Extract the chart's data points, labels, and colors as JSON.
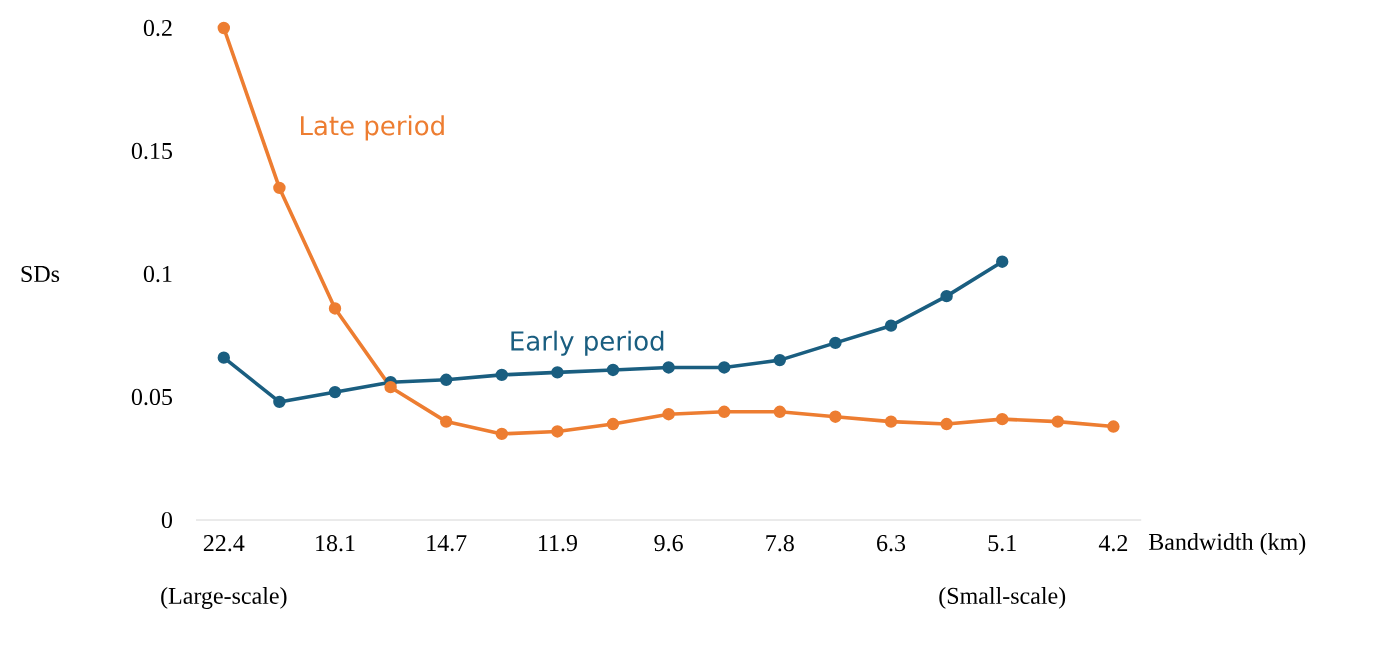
{
  "chart_data": {
    "type": "line",
    "xlabel": "Bandwidth (km)",
    "ylabel": "SDs",
    "categories": [
      "22.4",
      null,
      "18.1",
      null,
      "14.7",
      null,
      "11.9",
      null,
      "9.6",
      null,
      "7.8",
      null,
      "6.3",
      null,
      "5.1",
      null,
      "4.2"
    ],
    "series": [
      {
        "name": "Early period",
        "color": "#1a5e80",
        "values": [
          0.066,
          0.048,
          0.052,
          0.056,
          0.057,
          0.059,
          0.06,
          0.061,
          0.062,
          0.062,
          0.065,
          0.072,
          0.079,
          0.091,
          0.105,
          null,
          null
        ]
      },
      {
        "name": "Late period",
        "color": "#ed7d31",
        "values": [
          0.2,
          0.135,
          0.086,
          0.054,
          0.04,
          0.035,
          0.036,
          0.039,
          0.043,
          0.044,
          0.044,
          0.042,
          0.04,
          0.039,
          0.041,
          0.04,
          0.038
        ]
      }
    ],
    "ylim": [
      0,
      0.2
    ],
    "yticks": [
      0,
      0.05,
      0.1,
      0.15,
      0.2
    ],
    "annotations": [
      "(Large-scale)",
      "(Small-scale)"
    ],
    "grid": false,
    "marker": "circle",
    "line_style": "solid"
  }
}
